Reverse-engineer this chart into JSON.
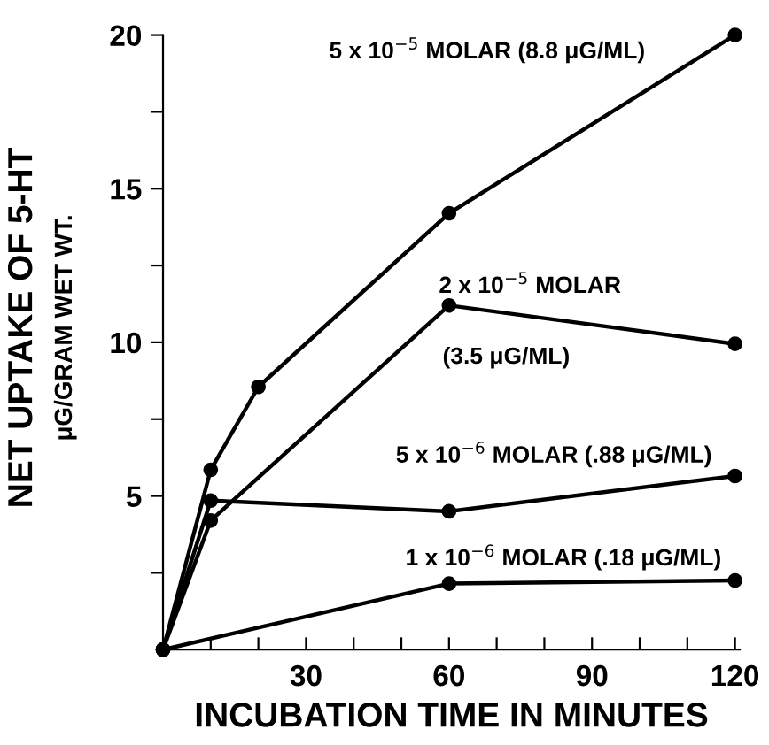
{
  "chart_data": {
    "type": "line",
    "xlabel": "INCUBATION TIME IN MINUTES",
    "ylabel": "NET UPTAKE OF 5-HT\nμG/GRAM WET WT.",
    "xlim": [
      0,
      121
    ],
    "ylim": [
      0,
      20
    ],
    "xticks": [
      {
        "value": 10,
        "label": null
      },
      {
        "value": 20,
        "label": null
      },
      30,
      {
        "value": 40,
        "label": null
      },
      {
        "value": 50,
        "label": null
      },
      60,
      {
        "value": 70,
        "label": null
      },
      {
        "value": 80,
        "label": null
      },
      90,
      {
        "value": 100,
        "label": null
      },
      {
        "value": 110,
        "label": null
      },
      120
    ],
    "yticks": [
      {
        "value": 2.5,
        "label": null
      },
      5,
      {
        "value": 7.5,
        "label": null
      },
      10,
      {
        "value": 12.5,
        "label": null
      },
      15,
      {
        "value": 17.5,
        "label": null
      },
      20
    ],
    "marker": "circle",
    "line_style": "solid",
    "grid": false,
    "legend": false,
    "series": [
      {
        "name": "5 x 10$^{−5}$ MOLAR (8.8 μG/ML)",
        "color": "#000000",
        "x": [
          0,
          10,
          20,
          60,
          120
        ],
        "values": [
          0,
          5.85,
          8.55,
          14.2,
          20
        ]
      },
      {
        "name": "2 x 10$^{−5}$ MOLAR\n(3.5 μG/ML)",
        "color": "#000000",
        "x": [
          0,
          10,
          60,
          120
        ],
        "values": [
          0,
          4.2,
          11.2,
          9.95
        ]
      },
      {
        "name": "5 x 10$^{−6}$ MOLAR (.88 μG/ML)",
        "color": "#000000",
        "x": [
          0,
          10,
          60,
          120
        ],
        "values": [
          0,
          4.85,
          4.5,
          5.65
        ]
      },
      {
        "name": "1 x 10$^{−6}$ MOLAR (.18 μG/ML)",
        "color": "#000000",
        "x": [
          0,
          60,
          120
        ],
        "values": [
          0,
          2.15,
          2.25
        ]
      }
    ]
  }
}
